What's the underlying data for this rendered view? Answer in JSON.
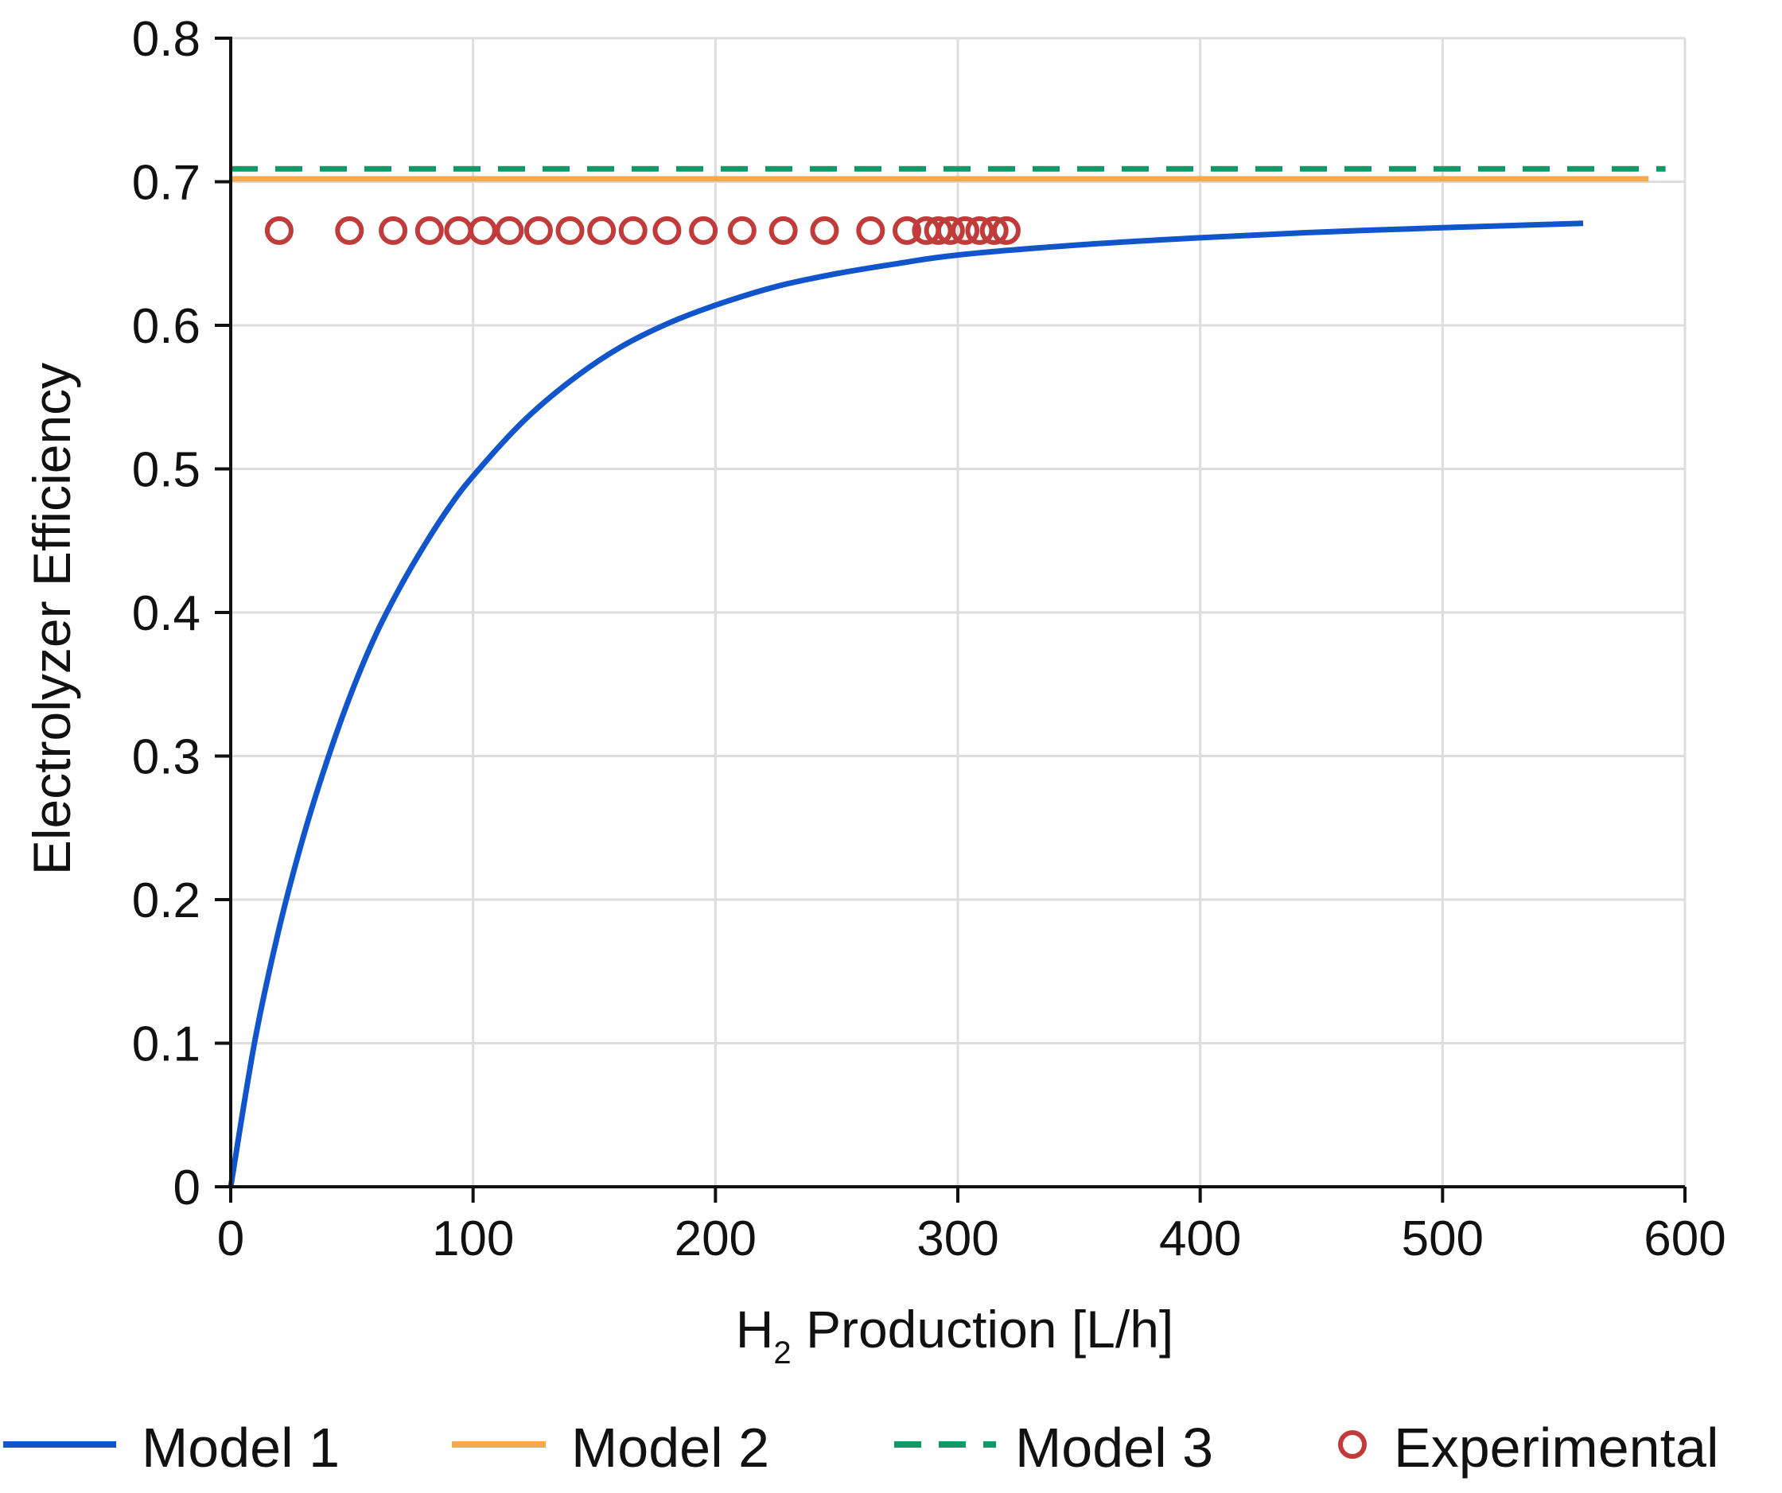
{
  "chart_data": {
    "type": "line",
    "title": "",
    "xlabel": {
      "main": "H",
      "subscript": "2",
      "rest": " Production [L/h]"
    },
    "ylabel": "Electrolyzer Efficiency",
    "xlim": [
      0,
      600
    ],
    "ylim": [
      0,
      0.8
    ],
    "xticks": [
      0,
      100,
      200,
      300,
      400,
      500,
      600
    ],
    "xtick_labels": [
      "0",
      "100",
      "200",
      "300",
      "400",
      "500",
      "600"
    ],
    "yticks": [
      0,
      0.1,
      0.2,
      0.3,
      0.4,
      0.5,
      0.6,
      0.7,
      0.8
    ],
    "ytick_labels": [
      "0",
      "0.1",
      "0.2",
      "0.3",
      "0.4",
      "0.5",
      "0.6",
      "0.7",
      "0.8"
    ],
    "grid": true,
    "legend_position": "bottom",
    "series": [
      {
        "name": "Model 1",
        "style": "solid",
        "color": "#1155cc",
        "x": [
          0,
          10,
          20,
          30,
          40,
          50,
          60,
          70,
          80,
          90,
          100,
          120,
          140,
          160,
          180,
          200,
          225,
          250,
          275,
          300,
          350,
          400,
          450,
          500,
          558
        ],
        "y": [
          0,
          0.102,
          0.18,
          0.244,
          0.298,
          0.345,
          0.385,
          0.418,
          0.447,
          0.473,
          0.495,
          0.532,
          0.561,
          0.584,
          0.601,
          0.614,
          0.627,
          0.636,
          0.643,
          0.649,
          0.656,
          0.661,
          0.665,
          0.668,
          0.671
        ]
      },
      {
        "name": "Model 2",
        "style": "solid",
        "color": "#f5a94e",
        "x": [
          0,
          585
        ],
        "y": [
          0.702,
          0.702
        ]
      },
      {
        "name": "Model 3",
        "style": "dashed",
        "color": "#119966",
        "x": [
          0,
          592
        ],
        "y": [
          0.709,
          0.709
        ]
      },
      {
        "name": "Experimental",
        "style": "marker",
        "color": "#c23b3b",
        "x": [
          20,
          49,
          67,
          82,
          94,
          104,
          115,
          127,
          140,
          153,
          166,
          180,
          195,
          211,
          228,
          245,
          264,
          279,
          287,
          292,
          297,
          303,
          309,
          315,
          320
        ],
        "y": [
          0.666,
          0.666,
          0.666,
          0.666,
          0.666,
          0.666,
          0.666,
          0.666,
          0.666,
          0.666,
          0.666,
          0.666,
          0.666,
          0.666,
          0.666,
          0.666,
          0.666,
          0.666,
          0.666,
          0.666,
          0.666,
          0.666,
          0.666,
          0.666,
          0.666
        ]
      }
    ]
  },
  "colors": {
    "axis": "#111111",
    "grid": "#dddddd"
  }
}
